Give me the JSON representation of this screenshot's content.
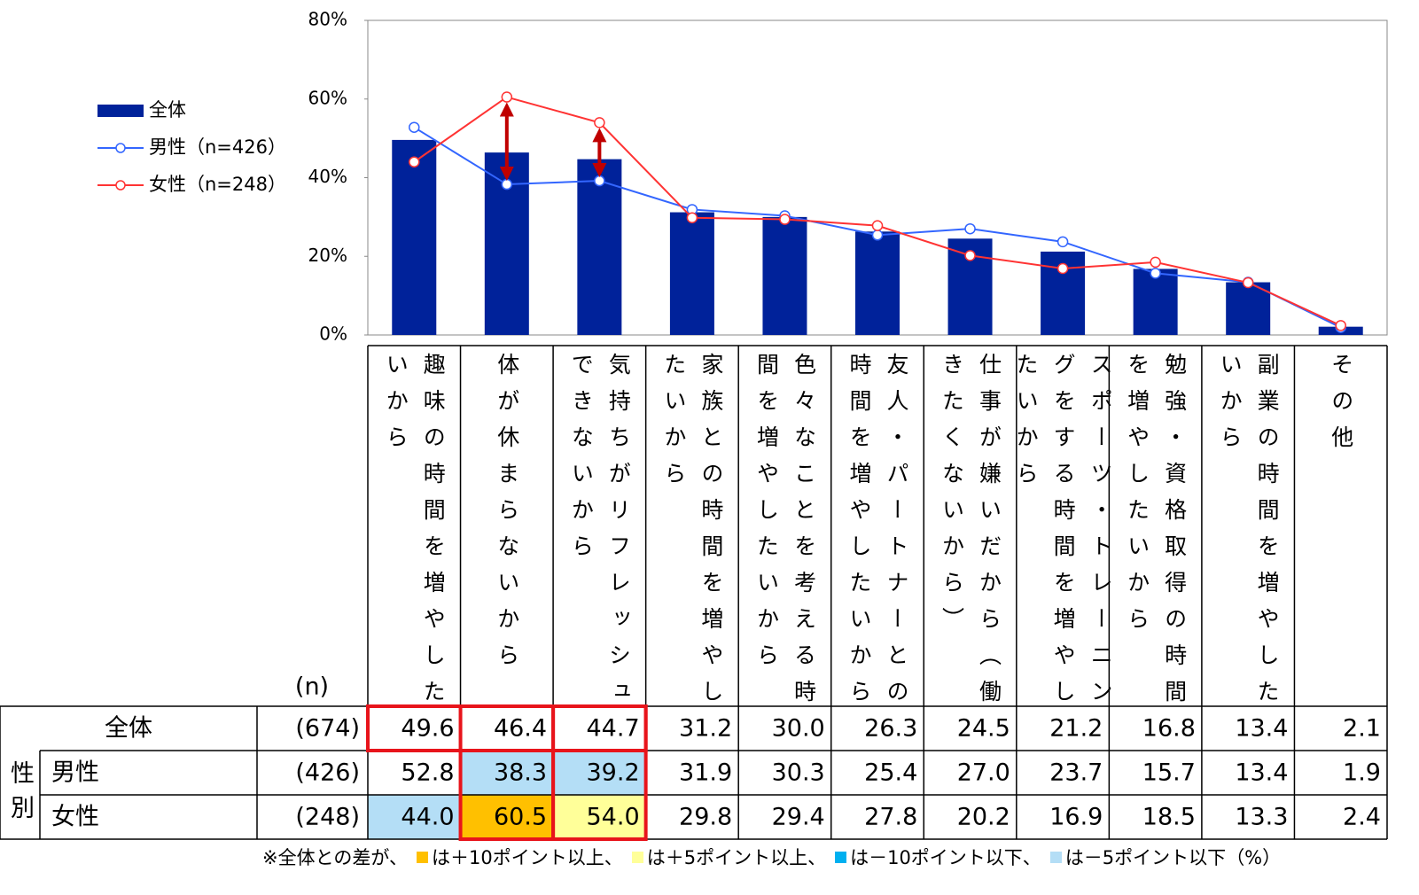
{
  "chart_data": {
    "type": "bar",
    "categories": [
      "趣味の時間を増やしたいから",
      "体が休まらないから",
      "気持ちがリフレッシュできないから",
      "家族との時間を増やしたいから",
      "色々なことを考える時間を増やしたいから",
      "友人・パートナーとの時間を増やしたいから",
      "仕事が嫌いだから（働きたくないから）",
      "スポーツ・トレーニングをする時間を増やしたいから",
      "勉強・資格取得の時間を増やしたいから",
      "副業の時間を増やしたいから",
      "その他"
    ],
    "series": [
      {
        "name": "全体",
        "type": "bar",
        "color": "#00229a",
        "values": [
          49.6,
          46.4,
          44.7,
          31.2,
          30.0,
          26.3,
          24.5,
          21.2,
          16.8,
          13.4,
          2.1
        ],
        "value_labels": [
          "49.6",
          "46.4",
          "44.7",
          "31.2",
          "30.0",
          "26.3",
          "24.5",
          "21.2",
          "16.8",
          "13.4",
          "2.1"
        ]
      },
      {
        "name": "男性（n=426）",
        "type": "line",
        "color": "#3366ff",
        "values": [
          52.8,
          38.3,
          39.2,
          31.9,
          30.3,
          25.4,
          27.0,
          23.7,
          15.7,
          13.4,
          1.9
        ],
        "value_labels": [
          "52.8",
          "38.3",
          "39.2",
          "31.9",
          "30.3",
          "25.4",
          "27.0",
          "23.7",
          "15.7",
          "13.4",
          "1.9"
        ]
      },
      {
        "name": "女性（n=248）",
        "type": "line",
        "color": "#ff3333",
        "values": [
          44.0,
          60.5,
          54.0,
          29.8,
          29.4,
          27.8,
          20.2,
          16.9,
          18.5,
          13.3,
          2.4
        ],
        "value_labels": [
          "44.0",
          "60.5",
          "54.0",
          "29.8",
          "29.4",
          "27.8",
          "20.2",
          "16.9",
          "18.5",
          "13.3",
          "2.4"
        ]
      }
    ],
    "ylim": [
      0,
      80
    ],
    "yticks": [
      {
        "value": 0,
        "label": "0%"
      },
      {
        "value": 20,
        "label": "20%"
      },
      {
        "value": 40,
        "label": "40%"
      },
      {
        "value": 60,
        "label": "60%"
      },
      {
        "value": 80,
        "label": "80%"
      }
    ],
    "legend": "left"
  },
  "table": {
    "n_header": "(n)",
    "group_label": "性別",
    "rows": [
      {
        "label": "全体",
        "n": "(674)"
      },
      {
        "label": "男性",
        "n": "(426)"
      },
      {
        "label": "女性",
        "n": "(248)"
      }
    ]
  },
  "note": {
    "prefix": "※全体との差が、",
    "items": [
      {
        "color": "#ffc000",
        "text": "は＋10ポイント以上、",
        "threshold": 10
      },
      {
        "color": "#ffff99",
        "text": "は＋5ポイント以上、",
        "threshold": 5
      },
      {
        "color": "#00b0f0",
        "text": "は－10ポイント以下、",
        "threshold": -10
      },
      {
        "color": "#b4def6",
        "text": "は－5ポイント以下",
        "threshold": -5
      }
    ],
    "suffix": "（%）"
  }
}
